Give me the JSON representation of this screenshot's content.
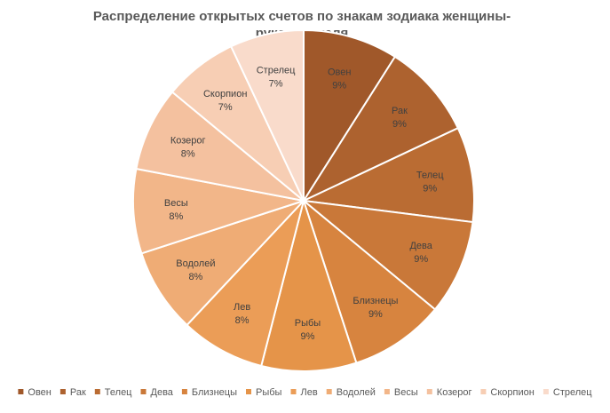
{
  "chart_data": {
    "type": "pie",
    "title_lines": [
      "Распределение открытых счетов по знакам зодиака женщины-",
      "руководителя"
    ],
    "legend_position": "bottom",
    "slices": [
      {
        "label": "Овен",
        "value": 9,
        "display": "9%",
        "color": "#A0582A"
      },
      {
        "label": "Рак",
        "value": 9,
        "display": "9%",
        "color": "#AD622F"
      },
      {
        "label": "Телец",
        "value": 9,
        "display": "9%",
        "color": "#BA6C33"
      },
      {
        "label": "Дева",
        "value": 9,
        "display": "9%",
        "color": "#C97839"
      },
      {
        "label": "Близнецы",
        "value": 9,
        "display": "9%",
        "color": "#D7843F"
      },
      {
        "label": "Рыбы",
        "value": 9,
        "display": "9%",
        "color": "#E59449"
      },
      {
        "label": "Лев",
        "value": 8,
        "display": "8%",
        "color": "#EB9D57"
      },
      {
        "label": "Водолей",
        "value": 8,
        "display": "8%",
        "color": "#EFAC75"
      },
      {
        "label": "Весы",
        "value": 8,
        "display": "8%",
        "color": "#F2B689"
      },
      {
        "label": "Козерог",
        "value": 8,
        "display": "8%",
        "color": "#F4C19F"
      },
      {
        "label": "Скорпион",
        "value": 7,
        "display": "7%",
        "color": "#F7CEB4"
      },
      {
        "label": "Стрелец",
        "value": 7,
        "display": "7%",
        "color": "#F9DBCB"
      }
    ]
  }
}
